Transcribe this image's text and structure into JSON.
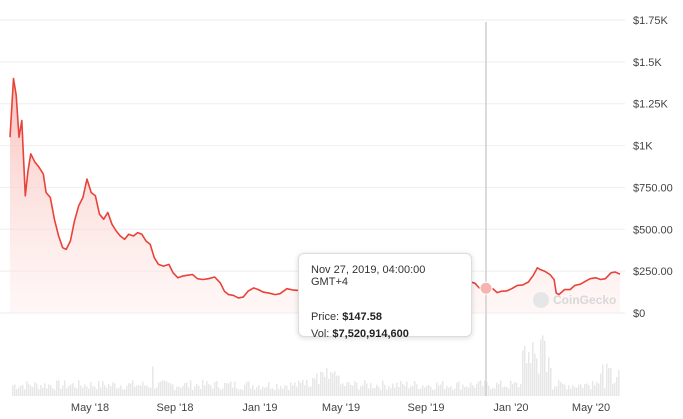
{
  "chart_data": {
    "type": "line",
    "y_axis": {
      "ticks": [
        "$1.75K",
        "$1.5K",
        "$1.25K",
        "$1K",
        "$750.00",
        "$500.00",
        "$250.00",
        "$0"
      ],
      "tick_values": [
        1750,
        1500,
        1250,
        1000,
        750,
        500,
        250,
        0
      ],
      "position": "right"
    },
    "x_axis": {
      "ticks": [
        "May '18",
        "Sep '18",
        "Jan '19",
        "May '19",
        "Sep '19",
        "Jan '20",
        "May '20"
      ]
    },
    "series": [
      {
        "color": "#e8423a",
        "area_fill": "#fde4e2",
        "points": [
          [
            "2018-01-15",
            1050
          ],
          [
            "2018-01-20",
            1400
          ],
          [
            "2018-01-24",
            1300
          ],
          [
            "2018-01-28",
            1050
          ],
          [
            "2018-02-01",
            1150
          ],
          [
            "2018-02-06",
            700
          ],
          [
            "2018-02-10",
            850
          ],
          [
            "2018-02-14",
            950
          ],
          [
            "2018-02-20",
            900
          ],
          [
            "2018-02-26",
            870
          ],
          [
            "2018-03-04",
            830
          ],
          [
            "2018-03-08",
            720
          ],
          [
            "2018-03-14",
            690
          ],
          [
            "2018-03-20",
            560
          ],
          [
            "2018-03-26",
            460
          ],
          [
            "2018-04-01",
            390
          ],
          [
            "2018-04-06",
            380
          ],
          [
            "2018-04-12",
            430
          ],
          [
            "2018-04-18",
            550
          ],
          [
            "2018-04-24",
            640
          ],
          [
            "2018-04-30",
            690
          ],
          [
            "2018-05-06",
            800
          ],
          [
            "2018-05-12",
            720
          ],
          [
            "2018-05-18",
            700
          ],
          [
            "2018-05-24",
            590
          ],
          [
            "2018-05-30",
            560
          ],
          [
            "2018-06-05",
            600
          ],
          [
            "2018-06-11",
            530
          ],
          [
            "2018-06-17",
            490
          ],
          [
            "2018-06-23",
            460
          ],
          [
            "2018-06-29",
            440
          ],
          [
            "2018-07-05",
            470
          ],
          [
            "2018-07-12",
            460
          ],
          [
            "2018-07-18",
            480
          ],
          [
            "2018-07-24",
            470
          ],
          [
            "2018-07-30",
            430
          ],
          [
            "2018-08-05",
            410
          ],
          [
            "2018-08-11",
            330
          ],
          [
            "2018-08-17",
            290
          ],
          [
            "2018-08-24",
            280
          ],
          [
            "2018-09-01",
            290
          ],
          [
            "2018-09-07",
            240
          ],
          [
            "2018-09-14",
            210
          ],
          [
            "2018-09-20",
            220
          ],
          [
            "2018-09-27",
            225
          ],
          [
            "2018-10-05",
            230
          ],
          [
            "2018-10-12",
            205
          ],
          [
            "2018-10-20",
            200
          ],
          [
            "2018-10-28",
            205
          ],
          [
            "2018-11-06",
            215
          ],
          [
            "2018-11-14",
            180
          ],
          [
            "2018-11-20",
            130
          ],
          [
            "2018-11-26",
            110
          ],
          [
            "2018-12-03",
            105
          ],
          [
            "2018-12-10",
            90
          ],
          [
            "2018-12-17",
            95
          ],
          [
            "2018-12-24",
            130
          ],
          [
            "2019-01-01",
            150
          ],
          [
            "2019-01-08",
            140
          ],
          [
            "2019-01-15",
            125
          ],
          [
            "2019-01-24",
            118
          ],
          [
            "2019-02-01",
            110
          ],
          [
            "2019-02-08",
            115
          ],
          [
            "2019-02-18",
            145
          ],
          [
            "2019-02-26",
            138
          ],
          [
            "2019-03-06",
            135
          ],
          [
            "2019-03-14",
            140
          ],
          [
            "2019-03-24",
            135
          ],
          [
            "2019-04-02",
            165
          ],
          [
            "2019-04-10",
            175
          ],
          [
            "2019-04-20",
            170
          ],
          [
            "2019-04-28",
            158
          ],
          [
            "2019-05-06",
            170
          ],
          [
            "2019-05-12",
            200
          ],
          [
            "2019-05-18",
            250
          ],
          [
            "2019-05-28",
            270
          ],
          [
            "2019-06-06",
            245
          ],
          [
            "2019-06-14",
            265
          ],
          [
            "2019-06-22",
            305
          ],
          [
            "2019-06-26",
            330
          ],
          [
            "2019-07-03",
            290
          ],
          [
            "2019-07-10",
            250
          ],
          [
            "2019-07-18",
            215
          ],
          [
            "2019-07-26",
            210
          ],
          [
            "2019-08-03",
            222
          ],
          [
            "2019-08-12",
            212
          ],
          [
            "2019-08-20",
            195
          ],
          [
            "2019-08-29",
            170
          ],
          [
            "2019-09-08",
            180
          ],
          [
            "2019-09-16",
            200
          ],
          [
            "2019-09-24",
            165
          ],
          [
            "2019-10-02",
            178
          ],
          [
            "2019-10-10",
            192
          ],
          [
            "2019-10-18",
            172
          ],
          [
            "2019-10-25",
            175
          ],
          [
            "2019-11-01",
            185
          ],
          [
            "2019-11-08",
            187
          ],
          [
            "2019-11-16",
            178
          ],
          [
            "2019-11-22",
            150
          ],
          [
            "2019-11-27",
            148
          ],
          [
            "2019-12-04",
            147
          ],
          [
            "2019-12-12",
            144
          ],
          [
            "2019-12-18",
            122
          ],
          [
            "2019-12-24",
            130
          ],
          [
            "2020-01-01",
            132
          ],
          [
            "2020-01-08",
            145
          ],
          [
            "2020-01-16",
            165
          ],
          [
            "2020-01-24",
            168
          ],
          [
            "2020-02-01",
            185
          ],
          [
            "2020-02-08",
            225
          ],
          [
            "2020-02-14",
            270
          ],
          [
            "2020-02-18",
            260
          ],
          [
            "2020-02-24",
            250
          ],
          [
            "2020-03-03",
            230
          ],
          [
            "2020-03-09",
            200
          ],
          [
            "2020-03-12",
            120
          ],
          [
            "2020-03-16",
            110
          ],
          [
            "2020-03-24",
            140
          ],
          [
            "2020-04-01",
            140
          ],
          [
            "2020-04-08",
            165
          ],
          [
            "2020-04-16",
            172
          ],
          [
            "2020-04-24",
            192
          ],
          [
            "2020-04-30",
            205
          ],
          [
            "2020-05-08",
            210
          ],
          [
            "2020-05-15",
            200
          ],
          [
            "2020-05-22",
            205
          ],
          [
            "2020-05-30",
            240
          ],
          [
            "2020-06-05",
            245
          ],
          [
            "2020-06-12",
            232
          ]
        ]
      }
    ],
    "volume_bars": "light gray",
    "grid": true,
    "hover_line_date": "2019-11-27"
  },
  "tooltip": {
    "date": "Nov 27, 2019, 04:00:00 GMT+4",
    "price_label": "Price:",
    "price_value": "$147.58",
    "vol_label": "Vol:",
    "vol_value": "$7,520,914,600"
  },
  "watermark": "CoinGecko"
}
